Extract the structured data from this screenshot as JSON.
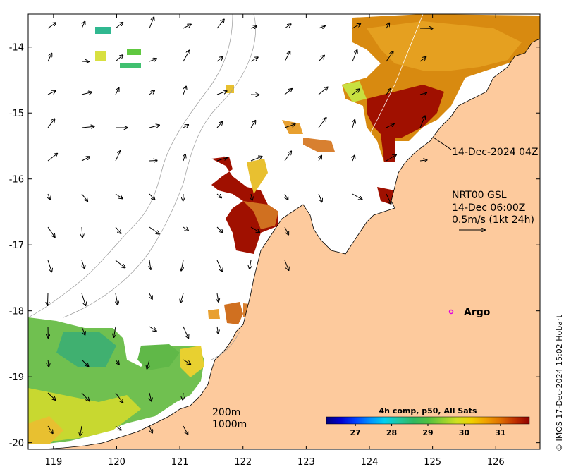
{
  "map": {
    "lon_range": [
      118.6,
      126.7
    ],
    "lat_range": [
      -20.1,
      -13.5
    ],
    "x_ticks": [
      "119",
      "120",
      "121",
      "122",
      "123",
      "124",
      "125",
      "126"
    ],
    "y_ticks": [
      "-14",
      "-15",
      "-16",
      "-17",
      "-18",
      "-19",
      "-20"
    ],
    "land_color": "#FDCA9D",
    "background_color": "#FFFFFF"
  },
  "annotations": {
    "swath_time": "14-Dec-2024 04Z",
    "currents_source": "NRT00 GSL",
    "currents_time": "14-Dec 06:00Z",
    "currents_scale": "0.5m/s (1kt 24h)",
    "argo_label": "Argo"
  },
  "isobaths": {
    "label_200": "200m",
    "label_1000": "1000m"
  },
  "colorbar": {
    "title": "4h comp, p50, All Sats",
    "ticks": [
      "27",
      "28",
      "29",
      "30",
      "31"
    ],
    "min": 26.2,
    "max": 31.8,
    "colors": [
      "#00007F",
      "#0000D0",
      "#0040FF",
      "#0090FF",
      "#00D0F0",
      "#20C8A0",
      "#30B860",
      "#50C040",
      "#90D030",
      "#D0E020",
      "#F0D000",
      "#F0A000",
      "#E07000",
      "#C03000",
      "#900000"
    ]
  },
  "credit": "© IMOS 17-Dec-2024 15:02 Hobart"
}
